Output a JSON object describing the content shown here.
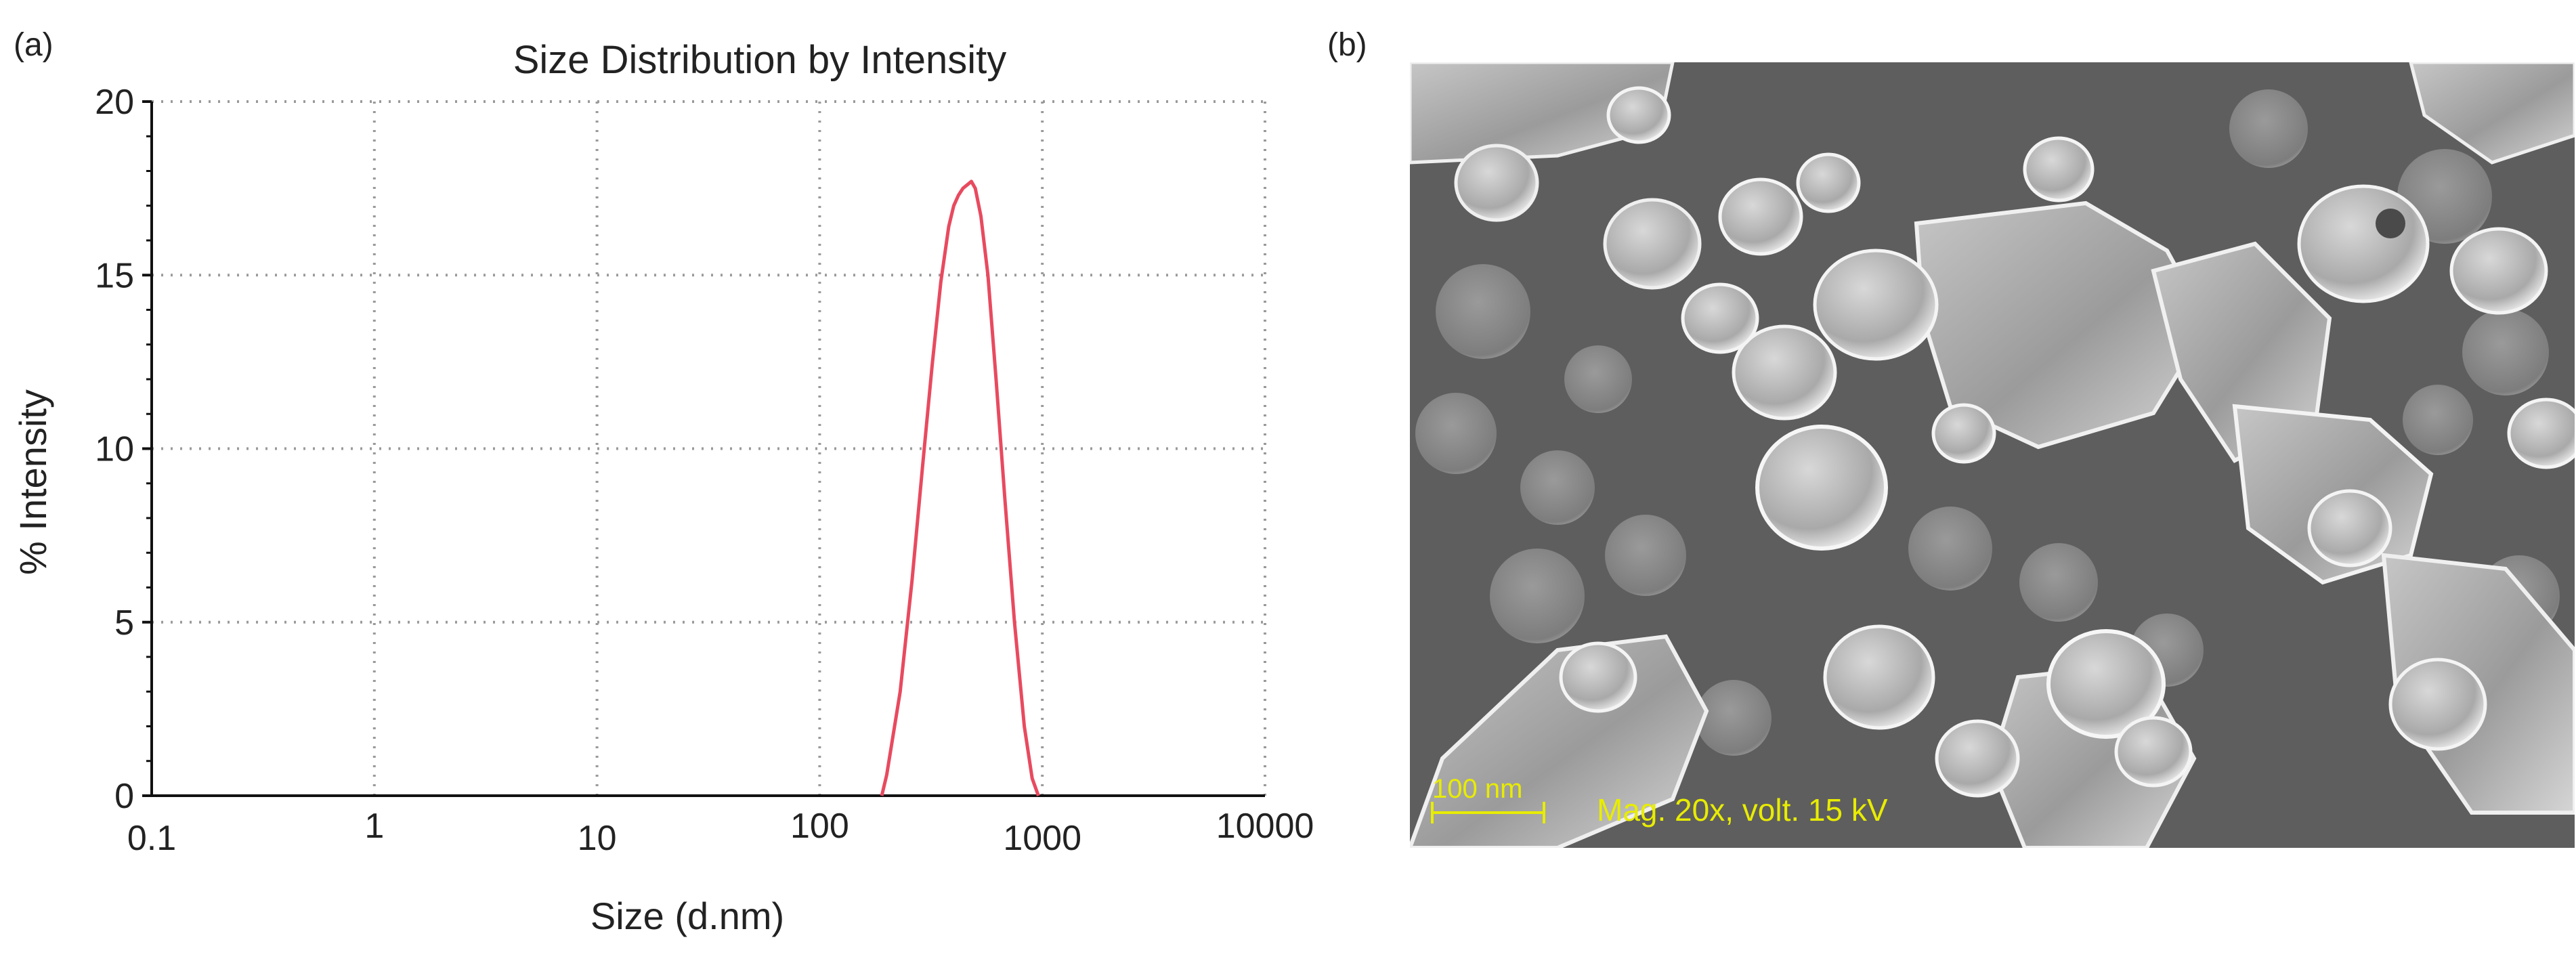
{
  "panel_a": {
    "label": "(a)",
    "chart_data": {
      "type": "line",
      "title": "Size Distribution by Intensity",
      "xlabel": "Size (d.nm)",
      "ylabel": "% Intensity",
      "x_scale": "log",
      "xlim": [
        0.1,
        10000
      ],
      "ylim": [
        0,
        20
      ],
      "x_ticks": [
        "0.1",
        "1",
        "10",
        "100",
        "1000",
        "10000"
      ],
      "y_ticks": [
        "0",
        "5",
        "10",
        "15",
        "20"
      ],
      "grid": true,
      "series": [
        {
          "color": "#e84a5f",
          "x": [
            190,
            200,
            230,
            260,
            290,
            320,
            350,
            380,
            400,
            420,
            440,
            460,
            480,
            500,
            530,
            570,
            620,
            680,
            750,
            830,
            900,
            960
          ],
          "y": [
            0.0,
            0.6,
            3.0,
            6.2,
            9.5,
            12.4,
            14.8,
            16.4,
            17.0,
            17.3,
            17.5,
            17.6,
            17.7,
            17.5,
            16.7,
            15.0,
            12.0,
            8.5,
            5.0,
            2.0,
            0.5,
            0.0
          ]
        }
      ]
    }
  },
  "panel_b": {
    "label": "(b)",
    "scale_bar_text": "100 nm",
    "caption_text": "Mag. 20x, volt. 15 kV",
    "colors": {
      "annotation": "#e8ec00",
      "background": "#5e5e5e"
    }
  }
}
